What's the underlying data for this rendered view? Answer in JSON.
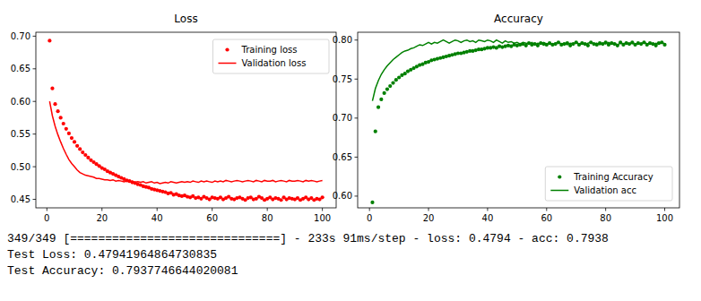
{
  "chart_data": [
    {
      "type": "line",
      "title": "Loss",
      "x": [
        1,
        2,
        3,
        4,
        5,
        6,
        7,
        8,
        9,
        10,
        11,
        12,
        13,
        14,
        15,
        16,
        17,
        18,
        19,
        20,
        21,
        22,
        23,
        24,
        25,
        26,
        27,
        28,
        29,
        30,
        31,
        32,
        33,
        34,
        35,
        36,
        37,
        38,
        39,
        40,
        41,
        42,
        43,
        44,
        45,
        46,
        47,
        48,
        49,
        50,
        51,
        52,
        53,
        54,
        55,
        56,
        57,
        58,
        59,
        60,
        61,
        62,
        63,
        64,
        65,
        66,
        67,
        68,
        69,
        70,
        71,
        72,
        73,
        74,
        75,
        76,
        77,
        78,
        79,
        80,
        81,
        82,
        83,
        84,
        85,
        86,
        87,
        88,
        89,
        90,
        91,
        92,
        93,
        94,
        95,
        96,
        97,
        98,
        99,
        100
      ],
      "series": [
        {
          "name": "Training loss",
          "type": "scatter",
          "marker": "circle",
          "color": "#ff0000",
          "values": [
            0.693,
            0.62,
            0.596,
            0.585,
            0.575,
            0.566,
            0.558,
            0.551,
            0.544,
            0.538,
            0.532,
            0.527,
            0.522,
            0.518,
            0.514,
            0.51,
            0.507,
            0.504,
            0.501,
            0.498,
            0.496,
            0.493,
            0.491,
            0.489,
            0.487,
            0.485,
            0.483,
            0.481,
            0.479,
            0.478,
            0.476,
            0.475,
            0.473,
            0.472,
            0.47,
            0.469,
            0.468,
            0.466,
            0.465,
            0.464,
            0.463,
            0.462,
            0.461,
            0.459,
            0.46,
            0.457,
            0.458,
            0.456,
            0.455,
            0.456,
            0.454,
            0.453,
            0.455,
            0.452,
            0.453,
            0.451,
            0.454,
            0.452,
            0.45,
            0.453,
            0.452,
            0.451,
            0.453,
            0.45,
            0.452,
            0.454,
            0.451,
            0.45,
            0.452,
            0.453,
            0.451,
            0.449,
            0.452,
            0.453,
            0.45,
            0.451,
            0.454,
            0.452,
            0.449,
            0.451,
            0.453,
            0.45,
            0.452,
            0.451,
            0.449,
            0.453,
            0.45,
            0.452,
            0.451,
            0.45,
            0.452,
            0.449,
            0.451,
            0.453,
            0.45,
            0.452,
            0.449,
            0.451,
            0.45,
            0.453
          ]
        },
        {
          "name": "Validation loss",
          "type": "line",
          "line_style": "solid",
          "color": "#ff0000",
          "values": [
            0.6,
            0.578,
            0.562,
            0.549,
            0.538,
            0.528,
            0.519,
            0.511,
            0.505,
            0.5,
            0.495,
            0.491,
            0.489,
            0.487,
            0.486,
            0.485,
            0.484,
            0.482,
            0.482,
            0.481,
            0.48,
            0.48,
            0.479,
            0.48,
            0.478,
            0.479,
            0.478,
            0.477,
            0.478,
            0.477,
            0.478,
            0.476,
            0.477,
            0.476,
            0.477,
            0.475,
            0.476,
            0.477,
            0.475,
            0.476,
            0.474,
            0.475,
            0.476,
            0.475,
            0.477,
            0.476,
            0.475,
            0.476,
            0.477,
            0.476,
            0.477,
            0.476,
            0.478,
            0.477,
            0.476,
            0.478,
            0.477,
            0.478,
            0.477,
            0.476,
            0.478,
            0.477,
            0.478,
            0.477,
            0.479,
            0.478,
            0.477,
            0.478,
            0.479,
            0.478,
            0.477,
            0.478,
            0.479,
            0.478,
            0.477,
            0.479,
            0.478,
            0.477,
            0.479,
            0.478,
            0.478,
            0.479,
            0.477,
            0.478,
            0.479,
            0.478,
            0.477,
            0.479,
            0.478,
            0.478,
            0.479,
            0.478,
            0.477,
            0.479,
            0.478,
            0.479,
            0.478,
            0.477,
            0.478,
            0.479
          ]
        }
      ],
      "xlim": [
        -4,
        105
      ],
      "xticks": [
        0,
        20,
        40,
        60,
        80,
        100
      ],
      "ylim": [
        0.437,
        0.706
      ],
      "yticks": [
        0.45,
        {
          "value": 0.5,
          "label": "0.50"
        },
        0.55,
        {
          "value": 0.6,
          "label": "0.60"
        },
        0.65,
        {
          "value": 0.7,
          "label": "0.70"
        }
      ],
      "grid": false,
      "legend": "upper right"
    },
    {
      "type": "line",
      "title": "Accuracy",
      "x": [
        1,
        2,
        3,
        4,
        5,
        6,
        7,
        8,
        9,
        10,
        11,
        12,
        13,
        14,
        15,
        16,
        17,
        18,
        19,
        20,
        21,
        22,
        23,
        24,
        25,
        26,
        27,
        28,
        29,
        30,
        31,
        32,
        33,
        34,
        35,
        36,
        37,
        38,
        39,
        40,
        41,
        42,
        43,
        44,
        45,
        46,
        47,
        48,
        49,
        50,
        51,
        52,
        53,
        54,
        55,
        56,
        57,
        58,
        59,
        60,
        61,
        62,
        63,
        64,
        65,
        66,
        67,
        68,
        69,
        70,
        71,
        72,
        73,
        74,
        75,
        76,
        77,
        78,
        79,
        80,
        81,
        82,
        83,
        84,
        85,
        86,
        87,
        88,
        89,
        90,
        91,
        92,
        93,
        94,
        95,
        96,
        97,
        98,
        99,
        100
      ],
      "series": [
        {
          "name": "Training Accuracy",
          "type": "scatter",
          "marker": "circle",
          "color": "#008000",
          "values": [
            0.592,
            0.683,
            0.714,
            0.724,
            0.732,
            0.737,
            0.741,
            0.745,
            0.749,
            0.752,
            0.755,
            0.757,
            0.76,
            0.762,
            0.764,
            0.766,
            0.768,
            0.769,
            0.771,
            0.772,
            0.774,
            0.775,
            0.776,
            0.777,
            0.778,
            0.779,
            0.78,
            0.781,
            0.782,
            0.783,
            0.783,
            0.784,
            0.785,
            0.786,
            0.786,
            0.787,
            0.788,
            0.788,
            0.789,
            0.79,
            0.79,
            0.791,
            0.79,
            0.792,
            0.791,
            0.792,
            0.793,
            0.792,
            0.794,
            0.793,
            0.794,
            0.795,
            0.793,
            0.796,
            0.794,
            0.795,
            0.793,
            0.796,
            0.795,
            0.794,
            0.796,
            0.794,
            0.795,
            0.797,
            0.794,
            0.795,
            0.796,
            0.793,
            0.795,
            0.797,
            0.794,
            0.796,
            0.795,
            0.793,
            0.797,
            0.795,
            0.794,
            0.796,
            0.795,
            0.797,
            0.794,
            0.796,
            0.795,
            0.793,
            0.797,
            0.794,
            0.796,
            0.795,
            0.797,
            0.794,
            0.796,
            0.795,
            0.797,
            0.794,
            0.796,
            0.795,
            0.793,
            0.796,
            0.797,
            0.794
          ]
        },
        {
          "name": "Validation acc",
          "type": "line",
          "line_style": "solid",
          "color": "#008000",
          "values": [
            0.722,
            0.738,
            0.748,
            0.756,
            0.762,
            0.767,
            0.771,
            0.775,
            0.778,
            0.781,
            0.784,
            0.786,
            0.787,
            0.789,
            0.79,
            0.792,
            0.794,
            0.793,
            0.795,
            0.797,
            0.795,
            0.797,
            0.796,
            0.798,
            0.8,
            0.798,
            0.796,
            0.798,
            0.8,
            0.799,
            0.797,
            0.799,
            0.8,
            0.798,
            0.799,
            0.797,
            0.8,
            0.799,
            0.798,
            0.8,
            0.799,
            0.797,
            0.8,
            0.798,
            0.796,
            0.799,
            0.797,
            0.798,
            0.796,
            0.797,
            0.795,
            0.797,
            0.796,
            0.795,
            0.797,
            0.794,
            0.796,
            0.795,
            0.797,
            0.795,
            0.796,
            0.794,
            0.796,
            0.797,
            0.795,
            0.796,
            0.794,
            0.796,
            0.795,
            0.797,
            0.795,
            0.796,
            0.794,
            0.796,
            0.797,
            0.795,
            0.796,
            0.794,
            0.796,
            0.795,
            0.797,
            0.795,
            0.796,
            0.794,
            0.796,
            0.795,
            0.797,
            0.795,
            0.796,
            0.794,
            0.796,
            0.795,
            0.797,
            0.795,
            0.796,
            0.794,
            0.796,
            0.795,
            0.797,
            0.795
          ]
        }
      ],
      "xlim": [
        -4,
        105
      ],
      "xticks": [
        0,
        20,
        40,
        60,
        80,
        100
      ],
      "ylim": [
        0.585,
        0.81
      ],
      "yticks": [
        {
          "value": 0.6,
          "label": "0.60"
        },
        0.65,
        {
          "value": 0.7,
          "label": "0.70"
        },
        0.75,
        {
          "value": 0.8,
          "label": "0.80"
        }
      ],
      "grid": false,
      "legend": "lower right"
    }
  ],
  "console": {
    "lines": [
      "349/349 [==============================] - 233s 91ms/step - loss: 0.4794 - acc: 0.7938",
      "Test Loss: 0.47941964864730835",
      "Test Accuracy: 0.7937746644020081"
    ]
  }
}
